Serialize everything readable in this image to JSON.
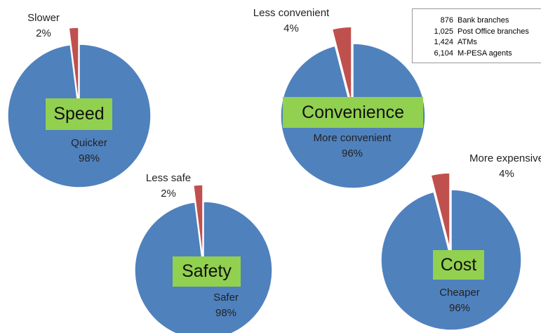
{
  "chart_data": [
    {
      "type": "pie",
      "title": "Speed",
      "categories": [
        "Quicker",
        "Slower"
      ],
      "values": [
        98,
        2
      ],
      "value_labels": [
        "98%",
        "2%"
      ],
      "colors": [
        "#4f81bd",
        "#c0504d"
      ]
    },
    {
      "type": "pie",
      "title": "Convenience",
      "categories": [
        "More convenient",
        "Less convenient"
      ],
      "values": [
        96,
        4
      ],
      "value_labels": [
        "96%",
        "4%"
      ],
      "colors": [
        "#4f81bd",
        "#c0504d"
      ]
    },
    {
      "type": "pie",
      "title": "Safety",
      "categories": [
        "Safer",
        "Less safe"
      ],
      "values": [
        98,
        2
      ],
      "value_labels": [
        "98%",
        "2%"
      ],
      "colors": [
        "#4f81bd",
        "#c0504d"
      ]
    },
    {
      "type": "pie",
      "title": "Cost",
      "categories": [
        "Cheaper",
        "More expensive"
      ],
      "values": [
        96,
        4
      ],
      "value_labels": [
        "96%",
        "4%"
      ],
      "colors": [
        "#4f81bd",
        "#c0504d"
      ]
    }
  ],
  "info_box": {
    "rows": [
      [
        "876",
        "Bank branches"
      ],
      [
        "1,025",
        "Post Office branches"
      ],
      [
        "1,424",
        "ATMs"
      ],
      [
        "6,104",
        "M-PESA agents"
      ]
    ]
  }
}
